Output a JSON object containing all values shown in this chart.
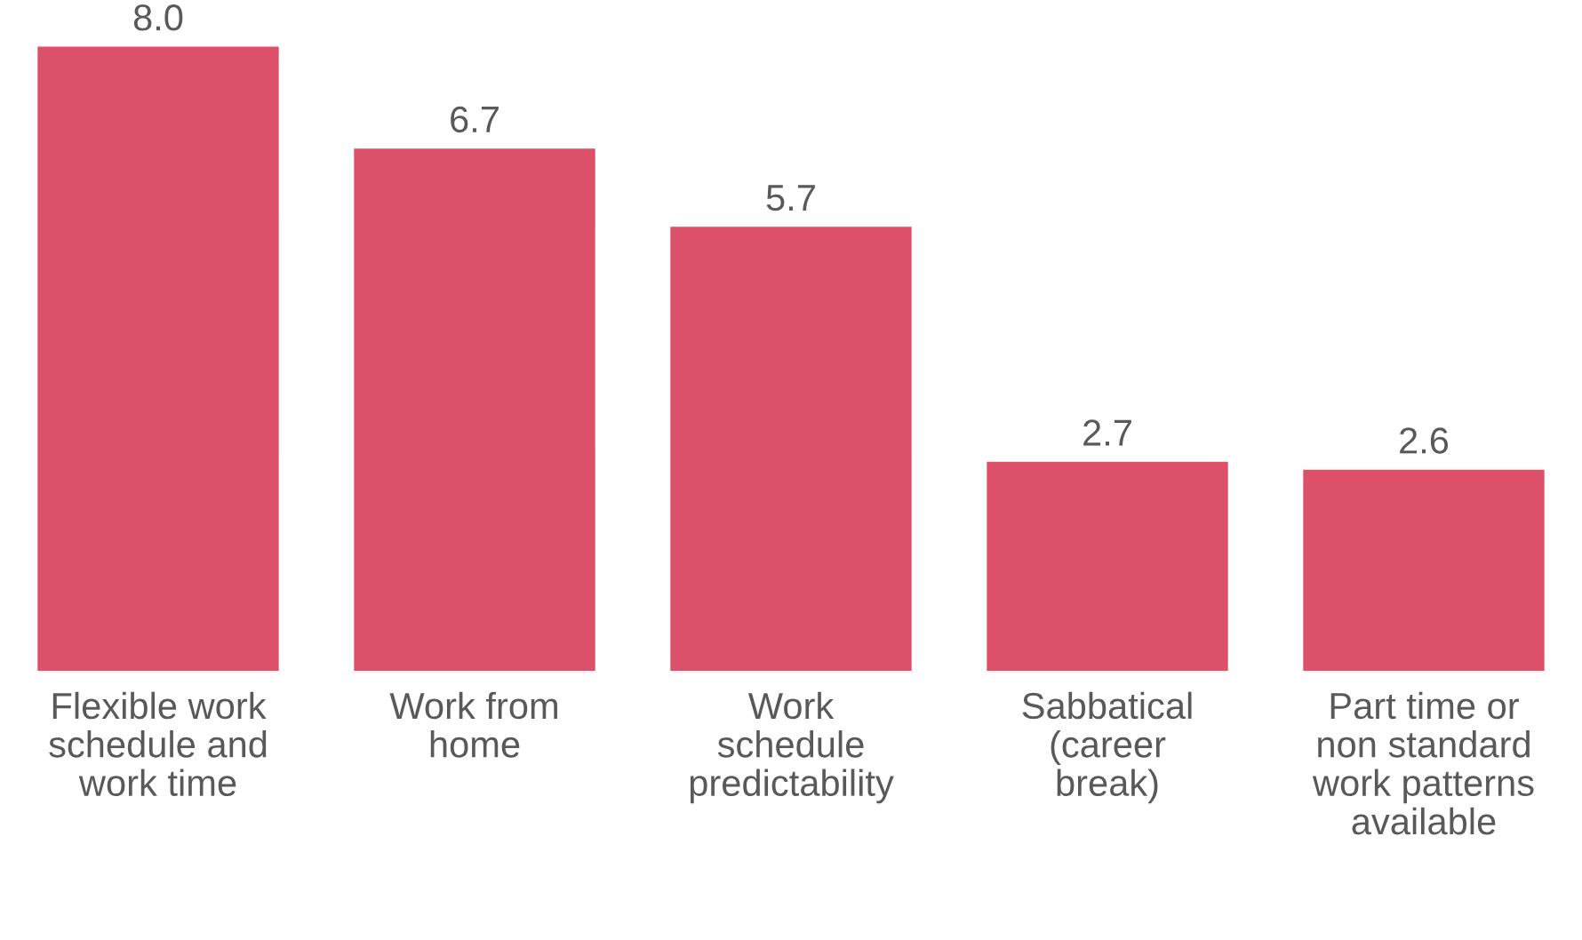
{
  "chart_data": {
    "type": "bar",
    "categories": [
      "Flexible work\nschedule and\nwork time",
      "Work from\nhome",
      "Work\nschedule\npredictability",
      "Sabbatical\n(career\nbreak)",
      "Part time or\nnon standard\nwork patterns\navailable"
    ],
    "values": [
      8.0,
      6.7,
      5.7,
      2.7,
      2.6
    ],
    "value_labels": [
      "8.0",
      "6.7",
      "5.7",
      "2.7",
      "2.6"
    ],
    "color": "#dc506a",
    "grid": false,
    "legend": false
  }
}
